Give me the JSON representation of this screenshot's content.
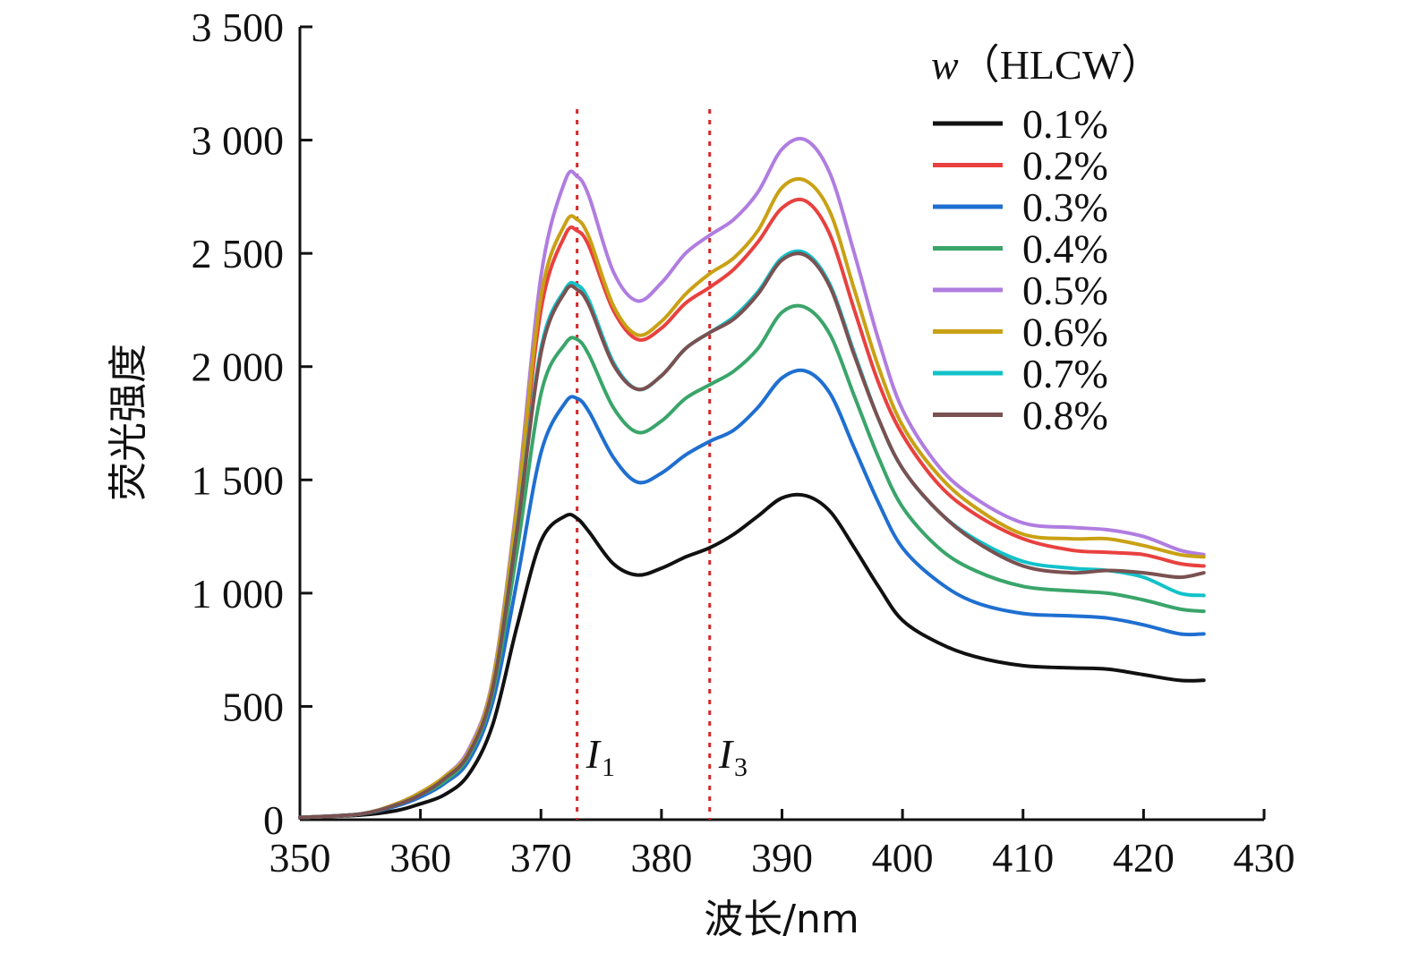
{
  "chart_data": {
    "type": "line",
    "xlabel": "波长/nm",
    "ylabel": "荧光强度",
    "xlim": [
      350,
      430
    ],
    "ylim": [
      0,
      3500
    ],
    "xticks": [
      350,
      360,
      370,
      380,
      390,
      400,
      410,
      420,
      430
    ],
    "xtick_labels": [
      "350",
      "360",
      "370",
      "380",
      "390",
      "400",
      "410",
      "420",
      "430"
    ],
    "yticks": [
      0,
      500,
      1000,
      1500,
      2000,
      2500,
      3000,
      3500
    ],
    "ytick_labels": [
      "0",
      "500",
      "1 000",
      "1 500",
      "2 000",
      "2 500",
      "3 000",
      "3 500"
    ],
    "grid": false,
    "legend": {
      "placement": "top-right",
      "title_var": "w",
      "title_rest": "（HLCW）"
    },
    "markers": [
      {
        "x": 373,
        "letter": "I",
        "sub": "1",
        "color": "#d62728"
      },
      {
        "x": 384,
        "letter": "I",
        "sub": "3",
        "color": "#d62728"
      }
    ],
    "x": [
      350,
      355,
      358,
      360,
      362,
      364,
      366,
      368,
      370,
      372,
      373,
      374,
      376,
      378,
      380,
      382,
      384,
      386,
      388,
      390,
      392,
      394,
      396,
      398,
      400,
      403,
      406,
      410,
      414,
      417,
      420,
      423,
      425
    ],
    "series": [
      {
        "name": "0.1%",
        "color": "#111111",
        "values": [
          10,
          20,
          40,
          70,
          110,
          200,
          420,
          850,
          1230,
          1340,
          1330,
          1270,
          1130,
          1080,
          1110,
          1160,
          1200,
          1260,
          1340,
          1420,
          1430,
          1360,
          1200,
          1030,
          880,
          780,
          720,
          680,
          670,
          665,
          640,
          615,
          615
        ]
      },
      {
        "name": "0.2%",
        "color": "#e8413f",
        "values": [
          10,
          25,
          70,
          120,
          190,
          300,
          600,
          1350,
          2250,
          2580,
          2600,
          2530,
          2250,
          2120,
          2170,
          2280,
          2350,
          2430,
          2550,
          2700,
          2730,
          2580,
          2250,
          1930,
          1700,
          1480,
          1350,
          1240,
          1190,
          1180,
          1170,
          1130,
          1120
        ]
      },
      {
        "name": "0.3%",
        "color": "#1f6fd1",
        "values": [
          10,
          25,
          60,
          100,
          160,
          260,
          520,
          1050,
          1620,
          1840,
          1860,
          1800,
          1600,
          1490,
          1530,
          1610,
          1670,
          1720,
          1820,
          1950,
          1980,
          1880,
          1640,
          1400,
          1200,
          1050,
          960,
          910,
          900,
          890,
          860,
          820,
          820
        ]
      },
      {
        "name": "0.4%",
        "color": "#3aa56a",
        "values": [
          10,
          25,
          65,
          110,
          170,
          280,
          560,
          1180,
          1880,
          2100,
          2120,
          2050,
          1820,
          1710,
          1760,
          1860,
          1920,
          1980,
          2080,
          2240,
          2260,
          2140,
          1870,
          1600,
          1380,
          1200,
          1100,
          1030,
          1010,
          1000,
          970,
          930,
          920
        ]
      },
      {
        "name": "0.5%",
        "color": "#b07de0",
        "values": [
          10,
          25,
          70,
          120,
          190,
          310,
          620,
          1400,
          2400,
          2820,
          2840,
          2750,
          2420,
          2290,
          2370,
          2500,
          2580,
          2650,
          2770,
          2960,
          3000,
          2850,
          2500,
          2120,
          1810,
          1560,
          1420,
          1310,
          1290,
          1280,
          1250,
          1190,
          1170
        ]
      },
      {
        "name": "0.6%",
        "color": "#c9a114",
        "values": [
          10,
          25,
          70,
          120,
          190,
          300,
          610,
          1370,
          2310,
          2630,
          2650,
          2570,
          2270,
          2140,
          2200,
          2320,
          2410,
          2480,
          2600,
          2790,
          2820,
          2680,
          2340,
          2000,
          1740,
          1520,
          1380,
          1260,
          1240,
          1240,
          1210,
          1170,
          1160
        ]
      },
      {
        "name": "0.7%",
        "color": "#12c2c9",
        "values": [
          10,
          25,
          65,
          110,
          180,
          290,
          580,
          1280,
          2080,
          2340,
          2360,
          2290,
          2020,
          1900,
          1960,
          2080,
          2150,
          2220,
          2330,
          2480,
          2500,
          2360,
          2060,
          1770,
          1550,
          1360,
          1240,
          1140,
          1110,
          1100,
          1070,
          1000,
          990
        ]
      },
      {
        "name": "0.8%",
        "color": "#7a5151",
        "values": [
          10,
          25,
          65,
          110,
          180,
          290,
          580,
          1270,
          2060,
          2330,
          2340,
          2270,
          2010,
          1900,
          1960,
          2080,
          2150,
          2210,
          2320,
          2470,
          2490,
          2350,
          2050,
          1770,
          1550,
          1360,
          1230,
          1120,
          1090,
          1100,
          1090,
          1070,
          1090
        ]
      }
    ]
  }
}
